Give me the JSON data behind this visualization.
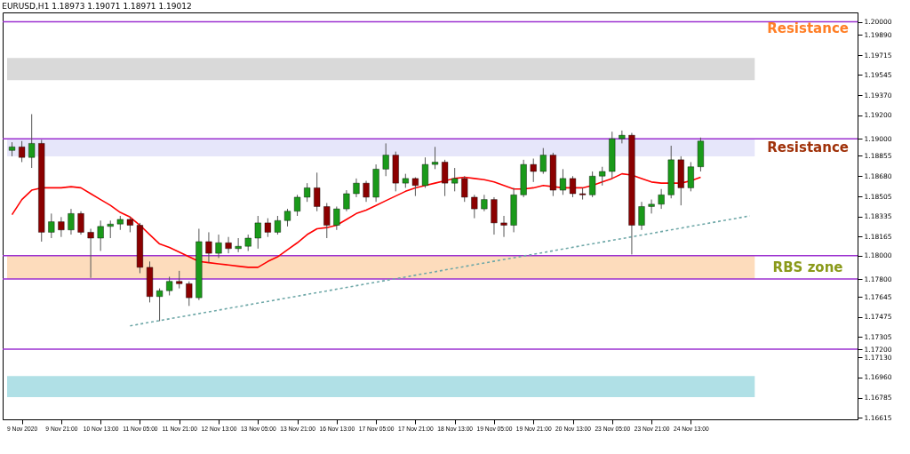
{
  "chart_data": {
    "type": "candlestick",
    "title": "EURUSD,H1  1.18973 1.19071 1.18971 1.19012",
    "categories": [
      null,
      "9 Nov 2020",
      null,
      null,
      null,
      "9 Nov 21:00",
      null,
      null,
      null,
      "10 Nov 13:00",
      null,
      null,
      null,
      "11 Nov 05:00",
      null,
      null,
      null,
      "11 Nov 21:00",
      null,
      null,
      null,
      "12 Nov 13:00",
      null,
      null,
      null,
      "13 Nov 05:00",
      null,
      null,
      null,
      "13 Nov 21:00",
      null,
      null,
      null,
      "16 Nov 13:00",
      null,
      null,
      null,
      "17 Nov 05:00",
      null,
      null,
      null,
      "17 Nov 21:00",
      null,
      null,
      null,
      "18 Nov 13:00",
      null,
      null,
      null,
      "19 Nov 05:00",
      null,
      null,
      null,
      "19 Nov 21:00",
      null,
      null,
      null,
      "20 Nov 13:00",
      null,
      null,
      null,
      "23 Nov 05:00",
      null,
      null,
      null,
      "23 Nov 21:00",
      null,
      null,
      null,
      "24 Nov 13:00",
      null,
      null,
      null,
      null,
      null,
      null,
      null,
      null,
      null,
      null,
      null,
      null,
      null,
      null,
      null,
      null
    ],
    "ohlc": [
      [
        1.189,
        1.1897,
        1.1885,
        1.1893
      ],
      [
        1.1893,
        1.1898,
        1.188,
        1.1884
      ],
      [
        1.1884,
        1.1921,
        1.1875,
        1.1896
      ],
      [
        1.1896,
        1.1899,
        1.1812,
        1.182
      ],
      [
        1.182,
        1.1836,
        1.1815,
        1.1829
      ],
      [
        1.1829,
        1.1833,
        1.1816,
        1.1822
      ],
      [
        1.1822,
        1.184,
        1.1818,
        1.1836
      ],
      [
        1.1836,
        1.1838,
        1.1818,
        1.182
      ],
      [
        1.182,
        1.1823,
        1.1781,
        1.1815
      ],
      [
        1.1815,
        1.183,
        1.1804,
        1.1825
      ],
      [
        1.1825,
        1.183,
        1.1815,
        1.1827
      ],
      [
        1.1827,
        1.1834,
        1.1822,
        1.1831
      ],
      [
        1.1831,
        1.1833,
        1.182,
        1.1826
      ],
      [
        1.1826,
        1.1828,
        1.1785,
        1.179
      ],
      [
        1.179,
        1.1795,
        1.176,
        1.1765
      ],
      [
        1.1765,
        1.1772,
        1.1744,
        1.177
      ],
      [
        1.177,
        1.1782,
        1.1766,
        1.1778
      ],
      [
        1.1778,
        1.1787,
        1.1772,
        1.1776
      ],
      [
        1.1776,
        1.1778,
        1.1757,
        1.1764
      ],
      [
        1.1764,
        1.1823,
        1.1762,
        1.1812
      ],
      [
        1.1812,
        1.182,
        1.1794,
        1.1802
      ],
      [
        1.1802,
        1.1818,
        1.1798,
        1.1811
      ],
      [
        1.1811,
        1.1816,
        1.1802,
        1.1806
      ],
      [
        1.1806,
        1.1815,
        1.1803,
        1.1808
      ],
      [
        1.1808,
        1.1818,
        1.1804,
        1.1815
      ],
      [
        1.1815,
        1.1834,
        1.1806,
        1.1828
      ],
      [
        1.1828,
        1.1832,
        1.1816,
        1.182
      ],
      [
        1.182,
        1.1834,
        1.1818,
        1.183
      ],
      [
        1.183,
        1.184,
        1.1825,
        1.1838
      ],
      [
        1.1838,
        1.1852,
        1.1834,
        1.185
      ],
      [
        1.185,
        1.1862,
        1.1846,
        1.1858
      ],
      [
        1.1858,
        1.1871,
        1.1838,
        1.1842
      ],
      [
        1.1842,
        1.1845,
        1.1815,
        1.1826
      ],
      [
        1.1826,
        1.1842,
        1.1822,
        1.184
      ],
      [
        1.184,
        1.1856,
        1.1838,
        1.1853
      ],
      [
        1.1853,
        1.1866,
        1.185,
        1.1862
      ],
      [
        1.1862,
        1.1864,
        1.1846,
        1.185
      ],
      [
        1.185,
        1.1878,
        1.1846,
        1.1874
      ],
      [
        1.1874,
        1.1896,
        1.1868,
        1.1886
      ],
      [
        1.1886,
        1.1889,
        1.1855,
        1.1862
      ],
      [
        1.1862,
        1.187,
        1.1858,
        1.1866
      ],
      [
        1.1866,
        1.1867,
        1.1851,
        1.186
      ],
      [
        1.186,
        1.1884,
        1.1858,
        1.1878
      ],
      [
        1.1878,
        1.1893,
        1.1874,
        1.188
      ],
      [
        1.188,
        1.1882,
        1.1851,
        1.1862
      ],
      [
        1.1862,
        1.1875,
        1.1855,
        1.1866
      ],
      [
        1.1866,
        1.1868,
        1.1846,
        1.185
      ],
      [
        1.185,
        1.1852,
        1.1832,
        1.184
      ],
      [
        1.184,
        1.1852,
        1.1838,
        1.1848
      ],
      [
        1.1848,
        1.185,
        1.1818,
        1.1828
      ],
      [
        1.1828,
        1.1834,
        1.1816,
        1.1826
      ],
      [
        1.1826,
        1.1858,
        1.182,
        1.1852
      ],
      [
        1.1852,
        1.1882,
        1.185,
        1.1878
      ],
      [
        1.1878,
        1.1883,
        1.1863,
        1.1872
      ],
      [
        1.1872,
        1.1892,
        1.187,
        1.1886
      ],
      [
        1.1886,
        1.1888,
        1.1851,
        1.1856
      ],
      [
        1.1856,
        1.1874,
        1.1852,
        1.1866
      ],
      [
        1.1866,
        1.1868,
        1.185,
        1.1853
      ],
      [
        1.1853,
        1.1858,
        1.1848,
        1.1852
      ],
      [
        1.1852,
        1.1872,
        1.185,
        1.1868
      ],
      [
        1.1868,
        1.1876,
        1.186,
        1.1872
      ],
      [
        1.1872,
        1.1906,
        1.1866,
        1.19
      ],
      [
        1.19,
        1.1907,
        1.1896,
        1.1903
      ],
      [
        1.1903,
        1.1905,
        1.1801,
        1.1826
      ],
      [
        1.1826,
        1.1846,
        1.1822,
        1.1842
      ],
      [
        1.1842,
        1.1848,
        1.1836,
        1.1844
      ],
      [
        1.1844,
        1.1857,
        1.184,
        1.1852
      ],
      [
        1.1852,
        1.1894,
        1.1849,
        1.1882
      ],
      [
        1.1882,
        1.1885,
        1.1843,
        1.1858
      ],
      [
        1.1858,
        1.188,
        1.1855,
        1.1876
      ],
      [
        1.1876,
        1.1901,
        1.1872,
        1.1898
      ],
      null,
      null,
      null,
      null,
      null,
      null,
      null,
      null,
      null,
      null,
      null,
      null,
      null,
      null,
      null
    ],
    "series": [
      {
        "type": "line",
        "color": "#ff0000",
        "line_style": "solid",
        "values": [
          1.1835,
          1.1848,
          1.1856,
          1.1858,
          1.1858,
          1.1858,
          1.1859,
          1.1858,
          1.1853,
          1.1848,
          1.1843,
          1.1837,
          1.1833,
          1.1826,
          1.1818,
          1.181,
          1.1807,
          1.1803,
          1.1799,
          1.1795,
          1.1794,
          1.1793,
          1.1792,
          1.1791,
          1.179,
          1.179,
          1.1795,
          1.1799,
          1.1805,
          1.1811,
          1.1818,
          1.1823,
          1.1824,
          1.1826,
          1.1831,
          1.1836,
          1.1839,
          1.1843,
          1.1847,
          1.1851,
          1.1855,
          1.1858,
          1.186,
          1.1862,
          1.1864,
          1.1866,
          1.1867,
          1.1866,
          1.1865,
          1.1863,
          1.186,
          1.1857,
          1.1857,
          1.1858,
          1.186,
          1.1859,
          1.1858,
          1.1858,
          1.1858,
          1.186,
          1.1863,
          1.1866,
          1.187,
          1.1869,
          1.1866,
          1.1863,
          1.1862,
          1.1862,
          1.1862,
          1.1864,
          1.1867,
          null,
          null,
          null,
          null,
          null,
          null,
          null,
          null,
          null,
          null,
          null,
          null,
          null,
          null,
          null
        ]
      },
      {
        "type": "line",
        "color": "#6fa8a8",
        "line_style": "dotted",
        "values": [
          null,
          null,
          null,
          null,
          null,
          null,
          null,
          null,
          null,
          null,
          null,
          null,
          1.174,
          null,
          null,
          null,
          null,
          null,
          null,
          null,
          null,
          null,
          null,
          null,
          null,
          null,
          null,
          null,
          null,
          null,
          null,
          null,
          null,
          null,
          null,
          null,
          null,
          null,
          null,
          null,
          null,
          null,
          null,
          null,
          null,
          null,
          null,
          null,
          null,
          null,
          null,
          null,
          null,
          null,
          null,
          null,
          null,
          null,
          null,
          null,
          null,
          null,
          null,
          null,
          null,
          null,
          null,
          null,
          null,
          null,
          null,
          null,
          null,
          null,
          null,
          1.1834,
          null,
          null,
          null,
          null,
          null,
          null,
          null,
          null,
          null,
          null
        ]
      }
    ],
    "ylim": [
      1.166,
      1.2008
    ],
    "yticks": [
      {
        "value": 1.2,
        "label": "1.20000"
      },
      {
        "value": 1.1989,
        "label": "1.19890"
      },
      {
        "value": 1.19715,
        "label": "1.19715"
      },
      {
        "value": 1.19545,
        "label": "1.19545"
      },
      {
        "value": 1.1937,
        "label": "1.19370"
      },
      {
        "value": 1.192,
        "label": "1.19200"
      },
      {
        "value": 1.19,
        "label": "1.19000"
      },
      {
        "value": 1.18855,
        "label": "1.18855"
      },
      {
        "value": 1.1868,
        "label": "1.18680"
      },
      {
        "value": 1.18505,
        "label": "1.18505"
      },
      {
        "value": 1.18335,
        "label": "1.18335"
      },
      {
        "value": 1.18165,
        "label": "1.18165"
      },
      {
        "value": 1.18,
        "label": "1.18000"
      },
      {
        "value": 1.178,
        "label": "1.17800"
      },
      {
        "value": 1.17645,
        "label": "1.17645"
      },
      {
        "value": 1.17475,
        "label": "1.17475"
      },
      {
        "value": 1.17305,
        "label": "1.17305"
      },
      {
        "value": 1.172,
        "label": "1.17200"
      },
      {
        "value": 1.1713,
        "label": "1.17130"
      },
      {
        "value": 1.1696,
        "label": "1.16960"
      },
      {
        "value": 1.16785,
        "label": "1.16785"
      },
      {
        "value": 1.16615,
        "label": "1.16615"
      }
    ],
    "ref_lines": [
      {
        "axis": "y",
        "value": 1.2,
        "label": "Resistance",
        "color": "#9b30d0"
      },
      {
        "axis": "y",
        "value": 1.19,
        "label": null,
        "color": "#9b30d0"
      },
      {
        "axis": "y",
        "value": 1.18,
        "label": null,
        "color": "#9b30d0"
      },
      {
        "axis": "y",
        "value": 1.178,
        "label": null,
        "color": "#9b30d0"
      },
      {
        "axis": "y",
        "value": 1.172,
        "label": null,
        "color": "#9b30d0"
      }
    ],
    "bands": [
      {
        "axis": "y",
        "from": 1.195,
        "to": 1.1969,
        "label": null,
        "color": "#d9d9d9"
      },
      {
        "axis": "y",
        "from": 1.1885,
        "to": 1.19,
        "label": "Resistance",
        "color": "#e6e6fa"
      },
      {
        "axis": "y",
        "from": 1.178,
        "to": 1.18,
        "label": "RBS zone",
        "color": "#fddcbc"
      },
      {
        "axis": "y",
        "from": 1.1679,
        "to": 1.1697,
        "label": null,
        "color": "#b0e0e6"
      }
    ]
  }
}
